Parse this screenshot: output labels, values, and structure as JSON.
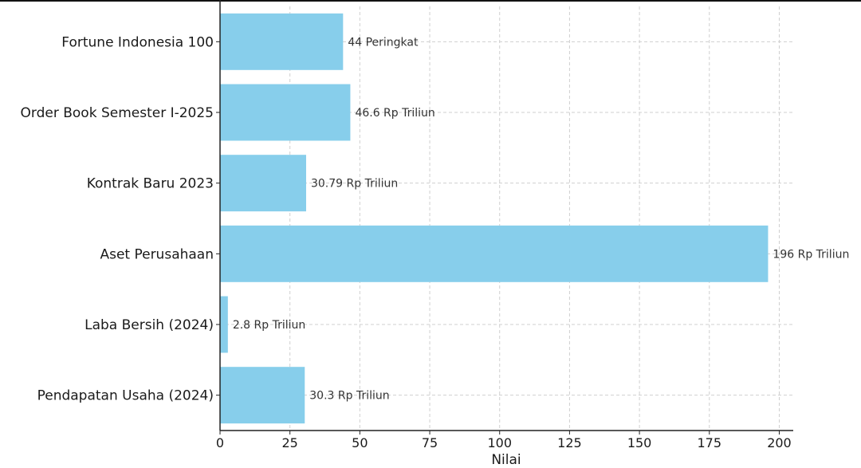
{
  "chart_data": {
    "type": "bar",
    "orientation": "horizontal",
    "categories": [
      "Fortune Indonesia 100",
      "Order Book Semester I-2025",
      "Kontrak Baru 2023",
      "Aset Perusahaan",
      "Laba Bersih (2024)",
      "Pendapatan Usaha (2024)"
    ],
    "values": [
      44,
      46.6,
      30.79,
      196,
      2.8,
      30.3
    ],
    "data_labels": [
      "44 Peringkat",
      "46.6 Rp Triliun",
      "30.79 Rp Triliun",
      "196 Rp Triliun",
      "2.8 Rp Triliun",
      "30.3 Rp Triliun"
    ],
    "xlabel": "Nilai",
    "ylabel": "",
    "title": "",
    "xlim": [
      0,
      205
    ],
    "xticks": [
      0,
      25,
      50,
      75,
      100,
      125,
      150,
      175,
      200
    ],
    "grid": true,
    "bar_color": "#87ceeb"
  }
}
